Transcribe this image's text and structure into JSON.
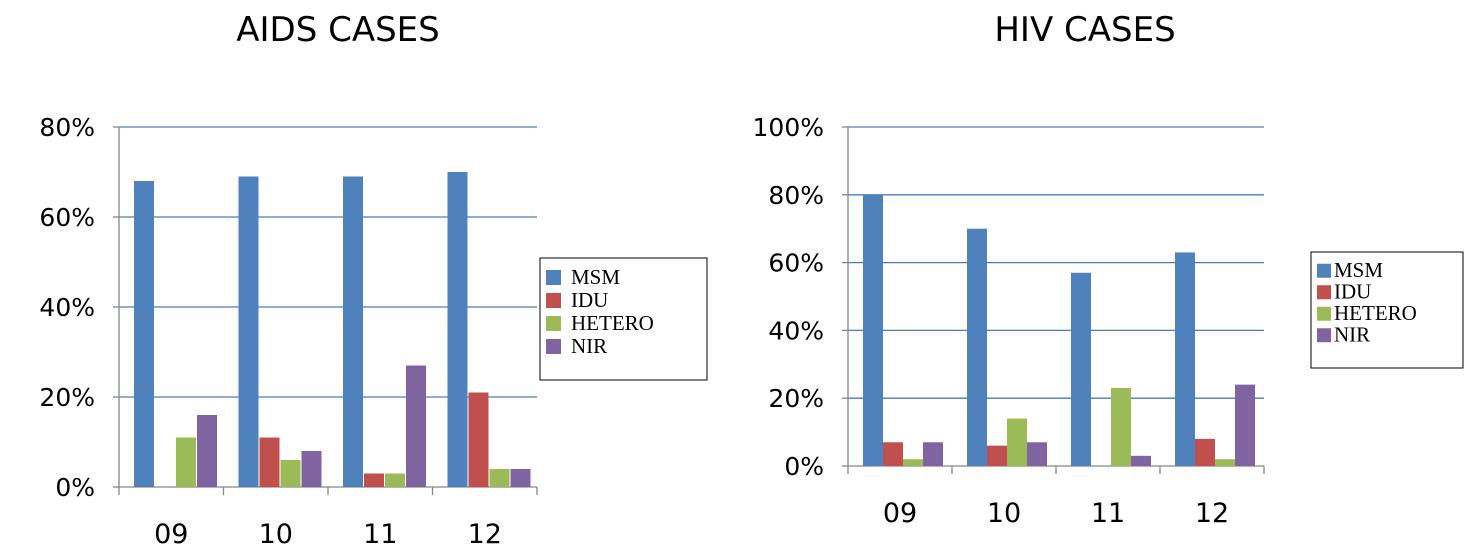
{
  "colors": {
    "MSM": "#4f81bd",
    "IDU": "#c0504d",
    "HETERO": "#9bbb59",
    "NIR": "#8064a2",
    "grid": "#4a7ebb",
    "axis": "#868686"
  },
  "chart_data": [
    {
      "type": "bar",
      "title": "AIDS CASES",
      "categories": [
        "09",
        "10",
        "11",
        "12"
      ],
      "ylim": [
        0,
        80
      ],
      "yticks": [
        "0%",
        "20%",
        "40%",
        "60%",
        "80%"
      ],
      "grid": true,
      "legend_position": "right",
      "series": [
        {
          "name": "MSM",
          "values": [
            68,
            69,
            69,
            70
          ]
        },
        {
          "name": "IDU",
          "values": [
            0,
            11,
            3,
            21
          ]
        },
        {
          "name": "HETERO",
          "values": [
            11,
            6,
            3,
            4
          ]
        },
        {
          "name": "NIR",
          "values": [
            16,
            8,
            27,
            4
          ]
        }
      ]
    },
    {
      "type": "bar",
      "title": "HIV CASES",
      "categories": [
        "09",
        "10",
        "11",
        "12"
      ],
      "ylim": [
        0,
        100
      ],
      "yticks": [
        "0%",
        "20%",
        "40%",
        "60%",
        "80%",
        "100%"
      ],
      "grid": true,
      "legend_position": "right",
      "series": [
        {
          "name": "MSM",
          "values": [
            80,
            70,
            57,
            63
          ]
        },
        {
          "name": "IDU",
          "values": [
            7,
            6,
            0,
            8
          ]
        },
        {
          "name": "HETERO",
          "values": [
            2,
            14,
            23,
            2
          ]
        },
        {
          "name": "NIR",
          "values": [
            7,
            7,
            3,
            24
          ]
        }
      ]
    }
  ]
}
